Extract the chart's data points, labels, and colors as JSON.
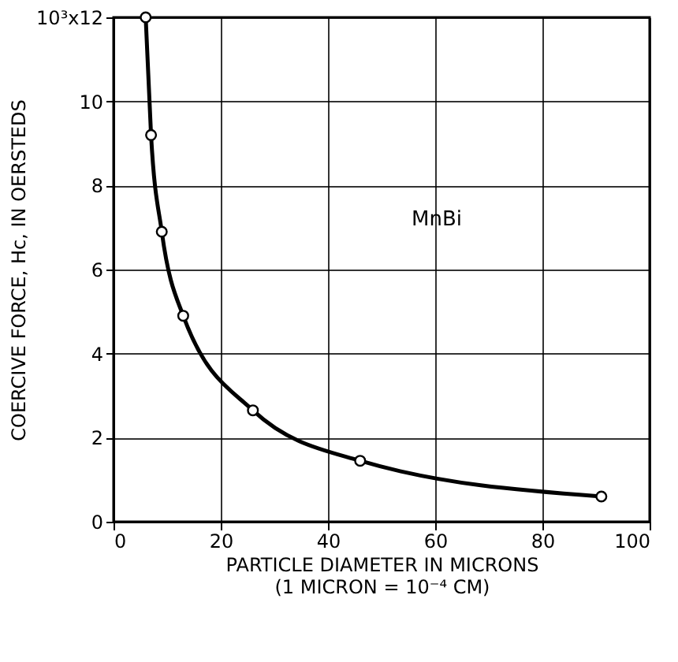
{
  "chart_data": {
    "type": "line",
    "xlabel": "PARTICLE DIAMETER IN MICRONS\n(1 MICRON = 10⁻⁴ CM)",
    "ylabel": "COERCIVE FORCE, Hc, IN OERSTEDS",
    "x": [
      6,
      7,
      9,
      13,
      26,
      46,
      91
    ],
    "series": [
      {
        "color": "#000000",
        "values": [
          12,
          9.2,
          6.9,
          4.9,
          2.65,
          1.45,
          0.6
        ]
      }
    ],
    "xlim": [
      0,
      100
    ],
    "ylim": [
      0,
      12
    ],
    "xticks": [
      0,
      20,
      40,
      60,
      80,
      100
    ],
    "yticks": [
      0,
      2,
      4,
      6,
      8,
      10,
      {
        "value": 12,
        "label": "10³x12"
      }
    ],
    "annotations": [
      "MnBi"
    ],
    "grid": true,
    "marker": "circle",
    "line_style": "solid"
  }
}
